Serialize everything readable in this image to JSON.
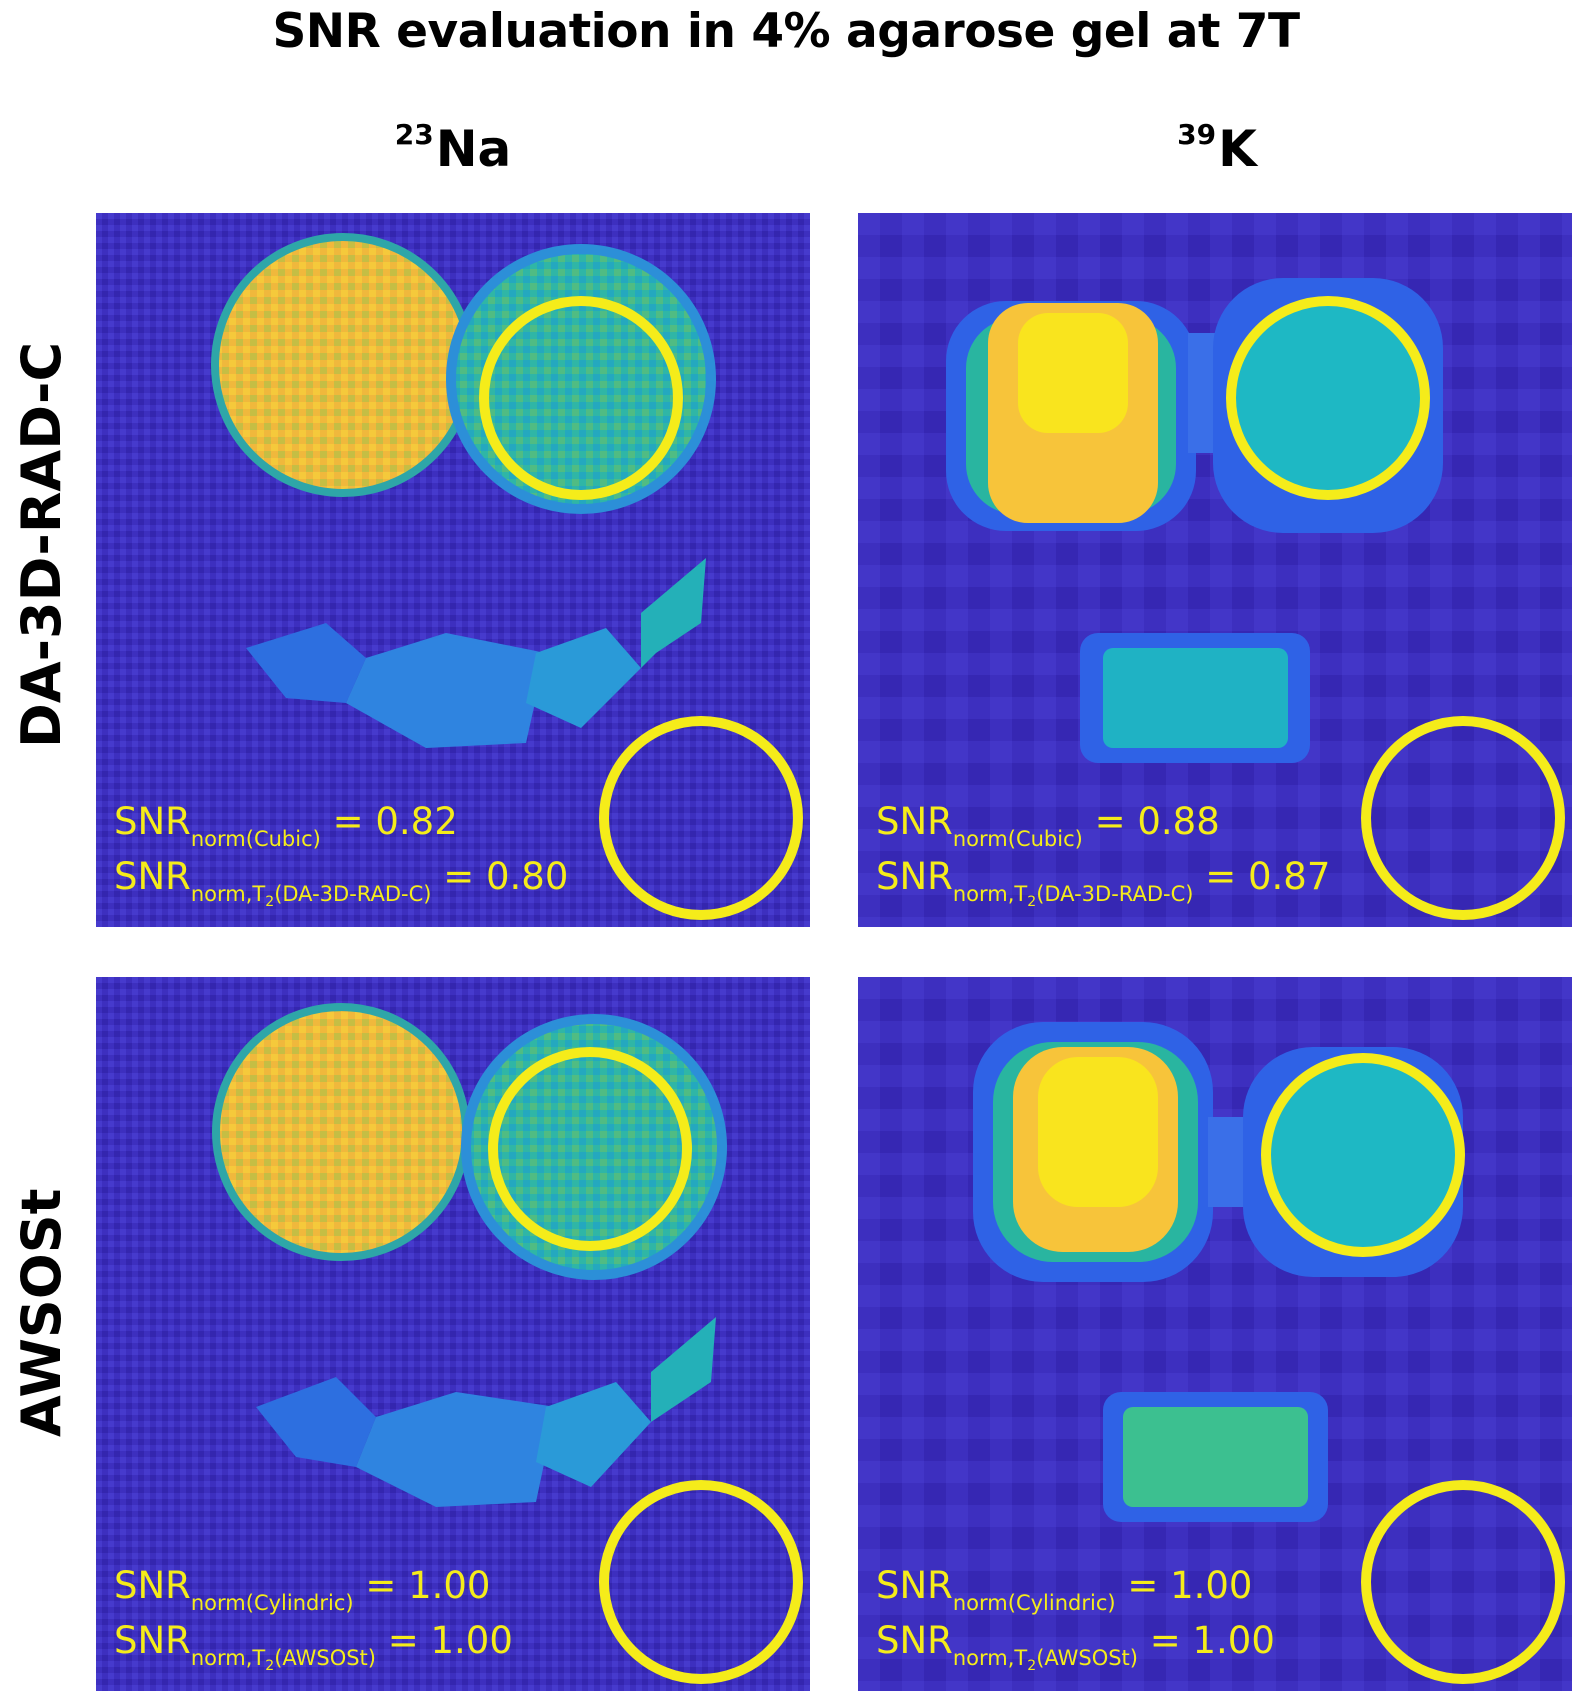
{
  "title": "SNR evaluation in 4% agarose gel at 7T",
  "columns": [
    {
      "sup": "23",
      "label": "Na"
    },
    {
      "sup": "39",
      "label": "K"
    }
  ],
  "rows": [
    "DA-3D-RAD-C",
    "AWSOSt"
  ],
  "colors": {
    "background": "#3d2fbf",
    "annotation": "#f5ec1a",
    "hot": "#f7c43a",
    "mid": "#1fb5c0",
    "low": "#3c74e8"
  },
  "panels": {
    "na_top": {
      "line1": {
        "prefix": "SNR",
        "sub": "norm(Cubic)",
        "value": " = 0.82"
      },
      "line2": {
        "prefix": "SNR",
        "sub": "norm,T",
        "subsub": "2",
        "sub_tail": "(DA-3D-RAD-C)",
        "value": " = 0.80"
      }
    },
    "k_top": {
      "line1": {
        "prefix": "SNR",
        "sub": "norm(Cubic)",
        "value": " = 0.88"
      },
      "line2": {
        "prefix": "SNR",
        "sub": "norm,T",
        "subsub": "2",
        "sub_tail": "(DA-3D-RAD-C)",
        "value": " = 0.87"
      }
    },
    "na_bottom": {
      "line1": {
        "prefix": "SNR",
        "sub": "norm(Cylindric)",
        "value": " = 1.00"
      },
      "line2": {
        "prefix": "SNR",
        "sub": "norm,T",
        "subsub": "2",
        "sub_tail": "(AWSOSt)",
        "value": " = 1.00"
      }
    },
    "k_bottom": {
      "line1": {
        "prefix": "SNR",
        "sub": "norm(Cylindric)",
        "value": " = 1.00"
      },
      "line2": {
        "prefix": "SNR",
        "sub": "norm,T",
        "subsub": "2",
        "sub_tail": "(AWSOSt)",
        "value": " = 1.00"
      }
    }
  }
}
